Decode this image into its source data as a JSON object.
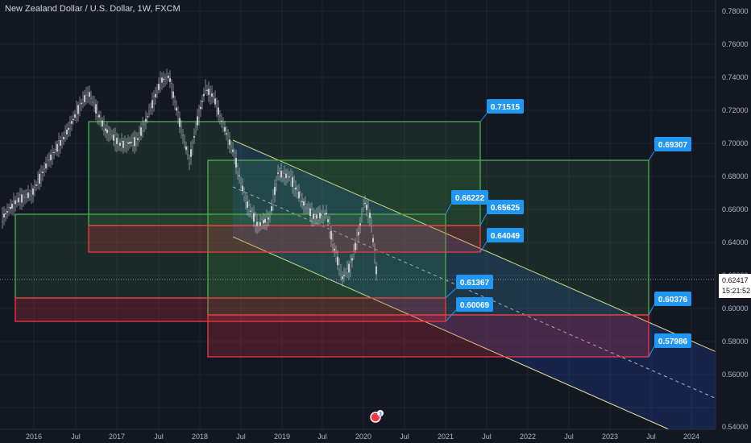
{
  "header": {
    "title": "New Zealand Dollar / U.S. Dollar, 1W, FXCM"
  },
  "colors": {
    "background": "#131722",
    "grid": "#1f2330",
    "text": "#b2b5be",
    "callout": "#2196f3",
    "green_zone": "#4caf50",
    "red_zone": "#f23645",
    "channel_line": "#e8e59a",
    "price_label": "#ffffff"
  },
  "price_axis": {
    "ticks": [
      "0.78000",
      "0.76000",
      "0.74000",
      "0.72000",
      "0.70000",
      "0.68000",
      "0.66000",
      "0.64000",
      "0.62000",
      "0.60000",
      "0.58000",
      "0.56000",
      "0.54000"
    ],
    "current_price": "0.62417",
    "countdown": "15:21:52"
  },
  "time_axis": {
    "ticks": [
      "2016",
      "Jul",
      "2017",
      "Jul",
      "2018",
      "Jul",
      "2019",
      "Jul",
      "2020",
      "Jul",
      "2021",
      "Jul",
      "2022",
      "Jul",
      "2023",
      "Jul",
      "2024"
    ]
  },
  "callouts": [
    {
      "label": "0.71515"
    },
    {
      "label": "0.69307"
    },
    {
      "label": "0.66222"
    },
    {
      "label": "0.65625"
    },
    {
      "label": "0.64049"
    },
    {
      "label": "0.61367"
    },
    {
      "label": "0.60069"
    },
    {
      "label": "0.60376"
    },
    {
      "label": "0.57986"
    }
  ],
  "event_badge": {
    "icon": "event-icon",
    "count": "3"
  }
}
